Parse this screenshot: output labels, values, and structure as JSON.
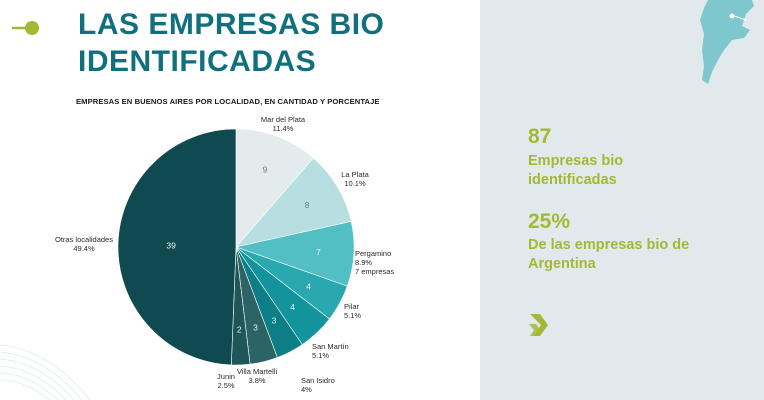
{
  "slide": {
    "title_line1": "LAS EMPRESAS BIO",
    "title_line2": "IDENTIFICADAS"
  },
  "stats": [
    {
      "number": "87",
      "label_line1": "Empresas bio",
      "label_line2": "identificadas"
    },
    {
      "number": "25%",
      "label_line1": "De las empresas bio de",
      "label_line2": "Argentina"
    }
  ],
  "colors": {
    "title": "#10707e",
    "accent": "#a3b833",
    "panel": "#e2e9ec",
    "map": "#7ec7cf"
  },
  "icons": [
    "title-bullet-icon",
    "argentina-map-icon",
    "chevron-arrow-icon"
  ],
  "chart_data": {
    "type": "pie",
    "title": "EMPRESAS EN BUENOS AIRES POR LOCALIDAD, EN CANTIDAD Y PORCENTAJE",
    "slices": [
      {
        "name": "Mar del Plata",
        "value": 9,
        "percent": "11.4%",
        "extra": "",
        "color": "#e4ebec"
      },
      {
        "name": "La Plata",
        "value": 8,
        "percent": "10.1%",
        "extra": "",
        "color": "#b7dfe1"
      },
      {
        "name": "Pergamino",
        "value": 7,
        "percent": "8.9%",
        "extra": "7 empresas",
        "color": "#52bfc5"
      },
      {
        "name": "Pilar",
        "value": 4,
        "percent": "5.1%",
        "extra": "",
        "color": "#2aa8b0"
      },
      {
        "name": "San Martín",
        "value": 4,
        "percent": "5.1%",
        "extra": "",
        "color": "#13949c"
      },
      {
        "name": "San Isidro",
        "value": 3,
        "percent": "4%",
        "extra": "",
        "color": "#0b7f85"
      },
      {
        "name": "Villa Martelli",
        "value": 3,
        "percent": "3.8%",
        "extra": "",
        "color": "#2c6466"
      },
      {
        "name": "Junin",
        "value": 2,
        "percent": "2.5%",
        "extra": "",
        "color": "#1f5658"
      },
      {
        "name": "Otras localidades",
        "value": 39,
        "percent": "49.4%",
        "extra": "",
        "color": "#0e4a4f"
      }
    ]
  }
}
